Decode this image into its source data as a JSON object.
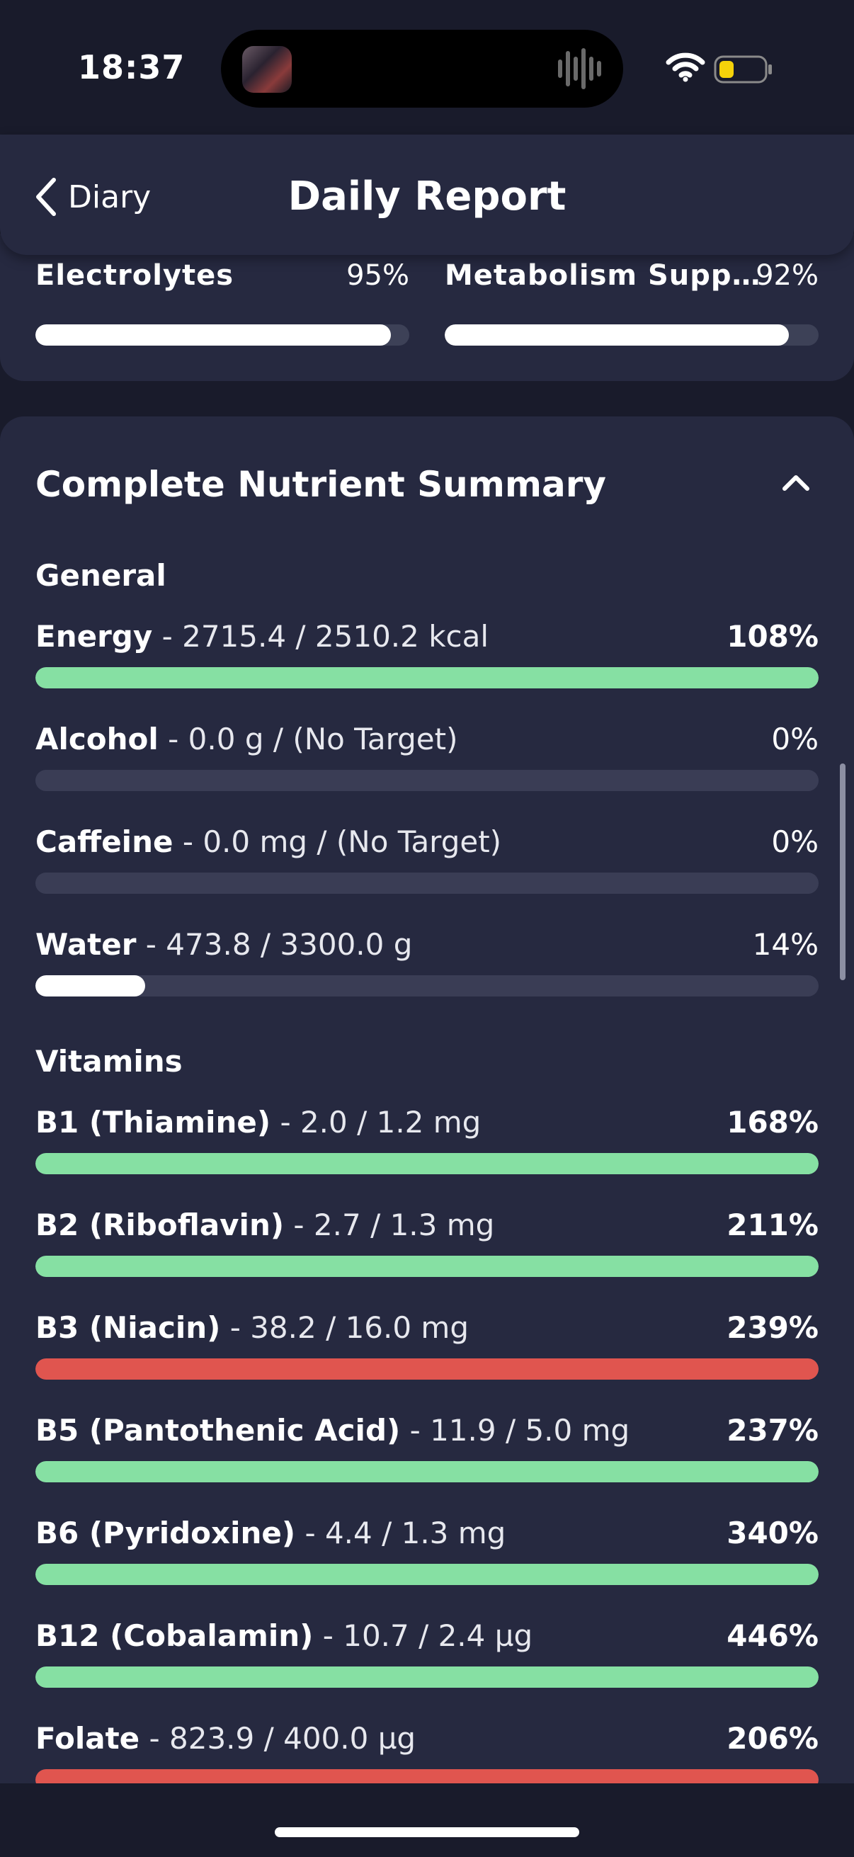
{
  "status_bar": {
    "time": "18:37"
  },
  "nav": {
    "back_label": "Diary",
    "title": "Daily Report"
  },
  "top_stats": [
    {
      "label": "Electrolytes",
      "percent": "95%",
      "fill": 0.95
    },
    {
      "label": "Metabolism Supp…",
      "percent": "92%",
      "fill": 0.92
    }
  ],
  "summary": {
    "title": "Complete Nutrient Summary",
    "sections": [
      {
        "label": "General",
        "rows": [
          {
            "name": "Energy",
            "detail": " - 2715.4 / 2510.2 kcal",
            "percent": "108%",
            "fill": 1.0,
            "color": "#86e0a3",
            "over": true
          },
          {
            "name": "Alcohol",
            "detail": " - 0.0 g / (No Target)",
            "percent": "0%",
            "fill": 0.0,
            "color": "#ffffff",
            "over": false
          },
          {
            "name": "Caffeine",
            "detail": " - 0.0 mg / (No Target)",
            "percent": "0%",
            "fill": 0.0,
            "color": "#ffffff",
            "over": false
          },
          {
            "name": "Water",
            "detail": " - 473.8 / 3300.0 g",
            "percent": "14%",
            "fill": 0.14,
            "color": "#ffffff",
            "over": false
          }
        ]
      },
      {
        "label": "Vitamins",
        "rows": [
          {
            "name": "B1 (Thiamine)",
            "detail": " - 2.0 / 1.2 mg",
            "percent": "168%",
            "fill": 1.0,
            "color": "#86e0a3",
            "over": true
          },
          {
            "name": "B2 (Riboflavin)",
            "detail": " - 2.7 / 1.3 mg",
            "percent": "211%",
            "fill": 1.0,
            "color": "#86e0a3",
            "over": true
          },
          {
            "name": "B3 (Niacin)",
            "detail": " - 38.2 / 16.0 mg",
            "percent": "239%",
            "fill": 1.0,
            "color": "#e0554f",
            "over": true
          },
          {
            "name": "B5 (Pantothenic Acid)",
            "detail": " - 11.9 / 5.0 mg",
            "percent": "237%",
            "fill": 1.0,
            "color": "#86e0a3",
            "over": true
          },
          {
            "name": "B6 (Pyridoxine)",
            "detail": " - 4.4 / 1.3 mg",
            "percent": "340%",
            "fill": 1.0,
            "color": "#86e0a3",
            "over": true
          },
          {
            "name": "B12 (Cobalamin)",
            "detail": " - 10.7 / 2.4 µg",
            "percent": "446%",
            "fill": 1.0,
            "color": "#86e0a3",
            "over": true
          },
          {
            "name": "Folate",
            "detail": " - 823.9 / 400.0 µg",
            "percent": "206%",
            "fill": 1.0,
            "color": "#e0554f",
            "over": true
          }
        ]
      }
    ]
  }
}
